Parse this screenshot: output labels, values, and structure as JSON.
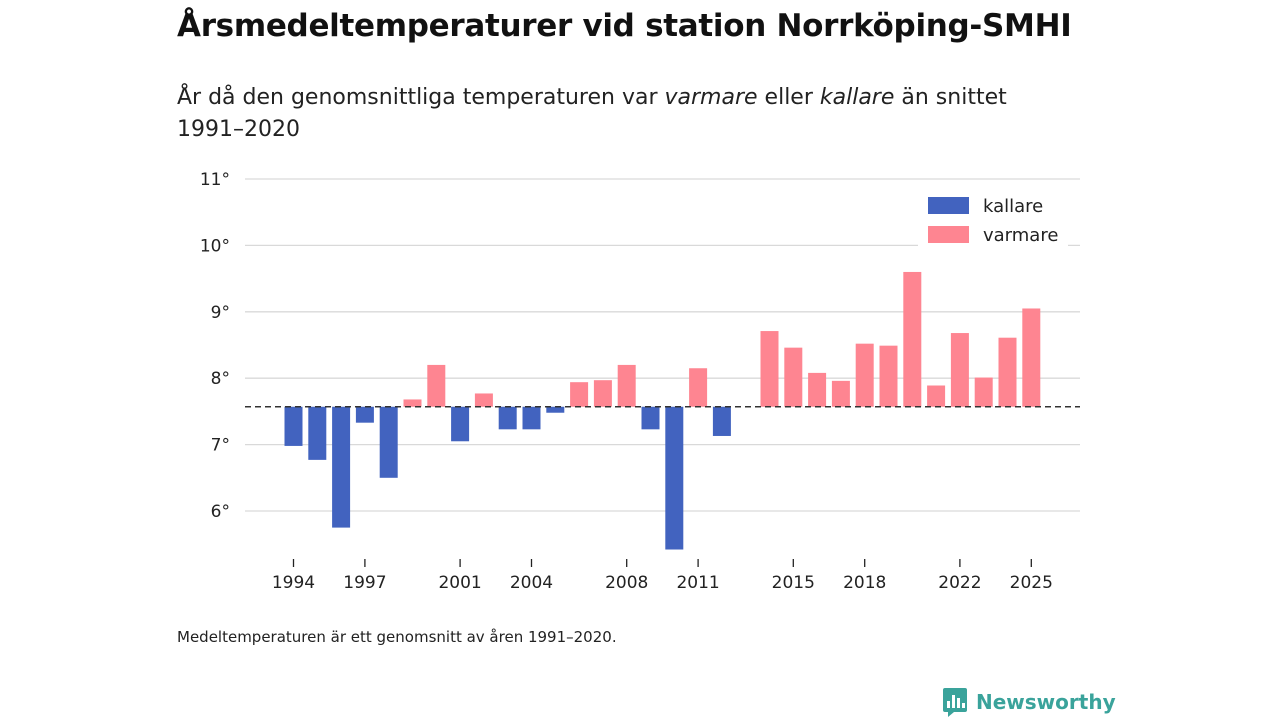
{
  "header": {
    "title": "Årsmedeltemperaturer vid station Norrköping-SMHI",
    "subtitle_part1": "År då den genomsnittliga temperaturen var ",
    "subtitle_warm": "varmare",
    "subtitle_part2": " eller ",
    "subtitle_cold": "kallare",
    "subtitle_part3": " än snittet 1991–2020"
  },
  "footer": {
    "note": "Medeltemperaturen är ett genomsnitt av åren 1991–2020.",
    "brand": "Newsworthy"
  },
  "colors": {
    "kallare": "#4263bf",
    "varmare": "#fe8591",
    "brand": "#3aa39b",
    "reference": "#333333"
  },
  "chart_data": {
    "type": "bar",
    "title": "Årsmedeltemperaturer vid station Norrköping-SMHI",
    "xlabel": "",
    "ylabel": "",
    "baseline": 7.57,
    "ylim": [
      5.3,
      11
    ],
    "yticks": [
      6,
      7,
      8,
      9,
      10,
      11
    ],
    "ytick_labels": [
      "6°",
      "7°",
      "8°",
      "9°",
      "10°",
      "11°"
    ],
    "xticks": [
      1994,
      1997,
      2001,
      2004,
      2008,
      2011,
      2015,
      2018,
      2022,
      2025
    ],
    "xtick_labels": [
      "1994",
      "1997",
      "2001",
      "2004",
      "2008",
      "2011",
      "2015",
      "2018",
      "2022",
      "2025"
    ],
    "legend": {
      "position": "top-right",
      "entries": [
        {
          "key": "kallare",
          "label": "kallare"
        },
        {
          "key": "varmare",
          "label": "varmare"
        }
      ]
    },
    "categories": [
      1994,
      1995,
      1996,
      1997,
      1998,
      1999,
      2000,
      2001,
      2002,
      2003,
      2004,
      2005,
      2006,
      2007,
      2008,
      2009,
      2010,
      2011,
      2012,
      2013,
      2014,
      2015,
      2016,
      2017,
      2018,
      2019,
      2020,
      2021,
      2022,
      2023,
      2024,
      2025
    ],
    "values": [
      6.98,
      6.77,
      5.75,
      7.33,
      6.5,
      7.68,
      8.2,
      7.05,
      7.77,
      7.23,
      7.23,
      7.48,
      7.94,
      7.97,
      8.2,
      7.23,
      5.42,
      8.15,
      7.13,
      null,
      8.71,
      8.46,
      8.08,
      7.96,
      8.52,
      8.49,
      9.6,
      7.89,
      8.68,
      8.01,
      8.61,
      9.05
    ]
  }
}
